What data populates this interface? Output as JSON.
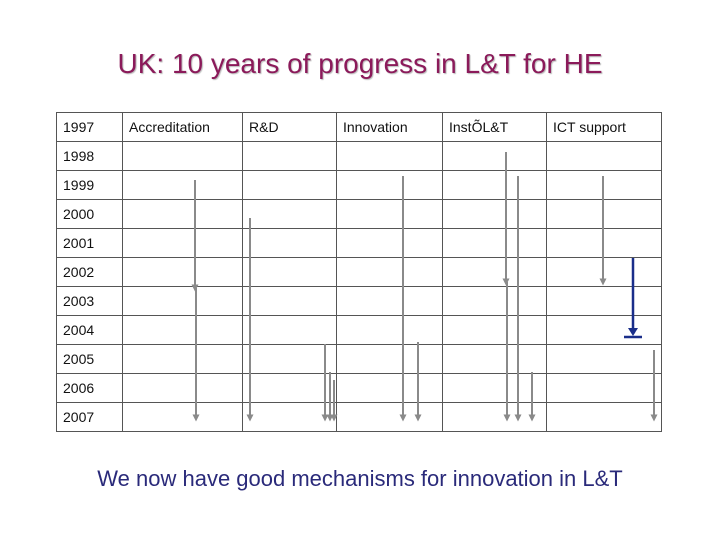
{
  "slide": {
    "title": "UK: 10 years of progress in L&T for HE",
    "footer": "We now have good mechanisms for innovation in L&T"
  },
  "table": {
    "header": [
      "1997",
      "Accreditation",
      "R&D",
      "Innovation",
      "InstÕL&T",
      "ICT support"
    ],
    "years": [
      "1998",
      "1999",
      "2000",
      "2001",
      "2002",
      "2003",
      "2004",
      "2005",
      "2006",
      "2007"
    ]
  },
  "colors": {
    "title": "#8B1A5A",
    "footer": "#2a2a7a",
    "arrow": "#8a8a8a",
    "highlight_arrow": "#1a2e8a"
  }
}
